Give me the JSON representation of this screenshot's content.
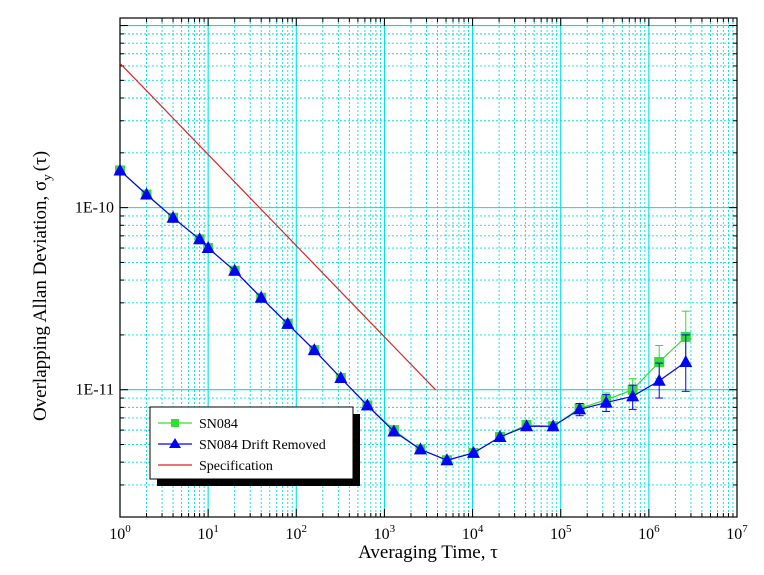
{
  "chart_data": {
    "type": "scatter",
    "xscale": "log",
    "yscale": "log",
    "xlim": [
      1,
      10000000
    ],
    "ylim": [
      2e-12,
      1.1e-09
    ],
    "grid": true,
    "xlabel": "Averaging Time, τ",
    "ylabel_main": "Overlapping Allan Deviation, σ",
    "ylabel_sub": "y",
    "ylabel_tail": "(τ)",
    "x_ticks": [
      {
        "value": 1,
        "base": "10",
        "exp": "0"
      },
      {
        "value": 10,
        "base": "10",
        "exp": "1"
      },
      {
        "value": 100,
        "base": "10",
        "exp": "2"
      },
      {
        "value": 1000,
        "base": "10",
        "exp": "3"
      },
      {
        "value": 10000,
        "base": "10",
        "exp": "4"
      },
      {
        "value": 100000,
        "base": "10",
        "exp": "5"
      },
      {
        "value": 1000000,
        "base": "10",
        "exp": "6"
      },
      {
        "value": 10000000,
        "base": "10",
        "exp": "7"
      }
    ],
    "y_ticks": [
      {
        "value": 1e-10,
        "label": "1E-10"
      },
      {
        "value": 1e-11,
        "label": "1E-11"
      }
    ],
    "legend_position": "bottom-left",
    "series": [
      {
        "name": "SN084",
        "color": "#33dd33",
        "marker": "square",
        "points": [
          {
            "x": 1,
            "y": 1.6e-10
          },
          {
            "x": 2,
            "y": 1.18e-10
          },
          {
            "x": 4,
            "y": 8.8e-11
          },
          {
            "x": 8,
            "y": 6.7e-11
          },
          {
            "x": 10,
            "y": 6e-11
          },
          {
            "x": 20,
            "y": 4.5e-11
          },
          {
            "x": 40,
            "y": 3.2e-11
          },
          {
            "x": 80,
            "y": 2.3e-11
          },
          {
            "x": 160,
            "y": 1.65e-11
          },
          {
            "x": 320,
            "y": 1.16e-11
          },
          {
            "x": 640,
            "y": 8.2e-12
          },
          {
            "x": 1280,
            "y": 6e-12
          },
          {
            "x": 2560,
            "y": 4.7e-12
          },
          {
            "x": 5120,
            "y": 4.1e-12
          },
          {
            "x": 10240,
            "y": 4.5e-12
          },
          {
            "x": 20480,
            "y": 5.5e-12
          },
          {
            "x": 40960,
            "y": 6.4e-12
          },
          {
            "x": 81920,
            "y": 6.3e-12
          },
          {
            "x": 163840,
            "y": 7.9e-12
          },
          {
            "x": 327680,
            "y": 8.8e-12,
            "err_lo": 8e-12,
            "err_hi": 9.6e-12
          },
          {
            "x": 655360,
            "y": 1e-11,
            "err_lo": 8.8e-12,
            "err_hi": 1.15e-11
          },
          {
            "x": 1310720,
            "y": 1.42e-11,
            "err_lo": 1.15e-11,
            "err_hi": 1.75e-11
          },
          {
            "x": 2621440,
            "y": 1.95e-11,
            "err_lo": 1.4e-11,
            "err_hi": 2.7e-11
          }
        ]
      },
      {
        "name": "SN084 Drift Removed",
        "color": "#0000ff",
        "marker": "triangle",
        "points": [
          {
            "x": 1,
            "y": 1.6e-10
          },
          {
            "x": 2,
            "y": 1.18e-10
          },
          {
            "x": 4,
            "y": 8.8e-11
          },
          {
            "x": 8,
            "y": 6.7e-11
          },
          {
            "x": 10,
            "y": 6e-11
          },
          {
            "x": 20,
            "y": 4.5e-11
          },
          {
            "x": 40,
            "y": 3.2e-11
          },
          {
            "x": 80,
            "y": 2.3e-11
          },
          {
            "x": 160,
            "y": 1.65e-11
          },
          {
            "x": 320,
            "y": 1.16e-11
          },
          {
            "x": 640,
            "y": 8.2e-12
          },
          {
            "x": 1280,
            "y": 5.9e-12
          },
          {
            "x": 2560,
            "y": 4.7e-12
          },
          {
            "x": 5120,
            "y": 4.1e-12
          },
          {
            "x": 10240,
            "y": 4.5e-12
          },
          {
            "x": 20480,
            "y": 5.5e-12
          },
          {
            "x": 40960,
            "y": 6.3e-12
          },
          {
            "x": 81920,
            "y": 6.3e-12
          },
          {
            "x": 163840,
            "y": 7.8e-12,
            "err_lo": 7.2e-12,
            "err_hi": 8.4e-12
          },
          {
            "x": 327680,
            "y": 8.5e-12,
            "err_lo": 7.6e-12,
            "err_hi": 9.4e-12
          },
          {
            "x": 655360,
            "y": 9.2e-12,
            "err_lo": 7.8e-12,
            "err_hi": 1.06e-11
          },
          {
            "x": 1310720,
            "y": 1.12e-11,
            "err_lo": 9e-12,
            "err_hi": 1.4e-11
          },
          {
            "x": 2621440,
            "y": 1.42e-11,
            "err_lo": 9.8e-12,
            "err_hi": 2e-11
          }
        ]
      },
      {
        "name": "Specification",
        "color": "#dd2222",
        "marker": "none",
        "points": [
          {
            "x": 1,
            "y": 6.2e-10
          },
          {
            "x": 3800,
            "y": 1e-11
          }
        ]
      }
    ]
  }
}
